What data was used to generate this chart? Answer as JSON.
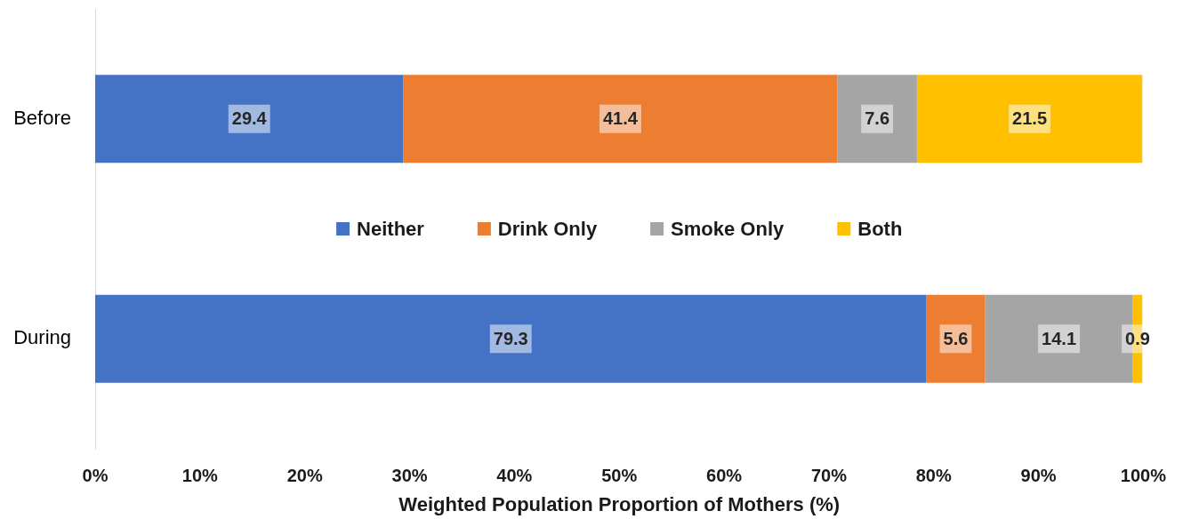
{
  "chart_data": {
    "type": "bar",
    "orientation": "horizontal",
    "stacked": true,
    "categories": [
      "Before",
      "During"
    ],
    "series": [
      {
        "name": "Neither",
        "color": "#4472c4",
        "values": [
          29.4,
          79.3
        ]
      },
      {
        "name": "Drink Only",
        "color": "#ed7d31",
        "values": [
          41.4,
          5.6
        ]
      },
      {
        "name": "Smoke Only",
        "color": "#a5a5a5",
        "values": [
          7.6,
          14.1
        ]
      },
      {
        "name": "Both",
        "color": "#ffc000",
        "values": [
          21.5,
          0.9
        ]
      }
    ],
    "xlabel": "Weighted Population Proportion of Mothers (%)",
    "xlim": [
      0,
      100
    ],
    "xticks": [
      {
        "value": 0,
        "label": "0%"
      },
      {
        "value": 10,
        "label": "10%"
      },
      {
        "value": 20,
        "label": "20%"
      },
      {
        "value": 30,
        "label": "30%"
      },
      {
        "value": 40,
        "label": "40%"
      },
      {
        "value": 50,
        "label": "50%"
      },
      {
        "value": 60,
        "label": "60%"
      },
      {
        "value": 70,
        "label": "70%"
      },
      {
        "value": 80,
        "label": "80%"
      },
      {
        "value": 90,
        "label": "90%"
      },
      {
        "value": 100,
        "label": "100%"
      }
    ],
    "data_labels": true,
    "legend": "center"
  }
}
